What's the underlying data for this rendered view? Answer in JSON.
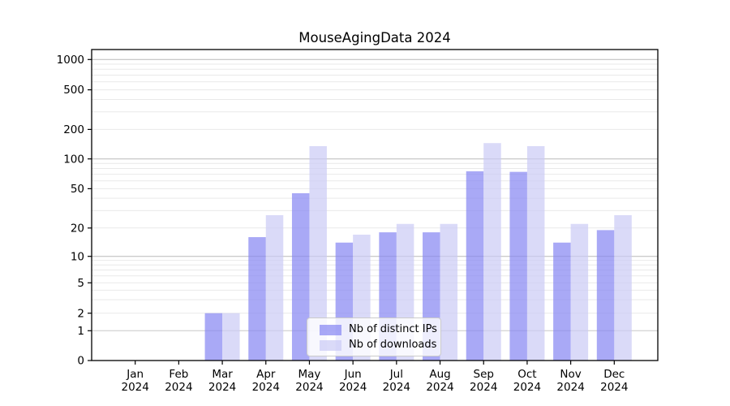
{
  "title": "MouseAgingData 2024",
  "legend": {
    "items": [
      {
        "label": "Nb of distinct IPs"
      },
      {
        "label": "Nb of downloads"
      }
    ]
  },
  "chart_data": {
    "type": "bar",
    "title": "MouseAgingData 2024",
    "categories": [
      "Jan",
      "Feb",
      "Mar",
      "Apr",
      "May",
      "Jun",
      "Jul",
      "Aug",
      "Sep",
      "Oct",
      "Nov",
      "Dec"
    ],
    "category_year": "2024",
    "series": [
      {
        "name": "Nb of distinct IPs",
        "color": "rgba(132,132,242,0.7)",
        "displayed_color": "#a9a9f6",
        "values": [
          0,
          0,
          2,
          16,
          45,
          14,
          18,
          18,
          75,
          74,
          14,
          19
        ]
      },
      {
        "name": "Nb of downloads",
        "color": "rgba(202,202,245,0.7)",
        "displayed_color": "#dadaf8",
        "values": [
          0,
          0,
          2,
          27,
          135,
          17,
          22,
          22,
          145,
          135,
          22,
          27
        ]
      }
    ],
    "yscale": "symlog",
    "yticks": [
      0,
      1,
      2,
      5,
      10,
      20,
      50,
      100,
      200,
      500,
      1000
    ],
    "ylim": [
      0,
      1264
    ],
    "xlabel": "",
    "ylabel": "",
    "grid": true,
    "legend_position": "lower center"
  },
  "colors": {
    "major_grid": "#b9b9b9",
    "one_grid": "#c8c8c8",
    "minor_grid": "#e9e9e9",
    "axis": "#000000",
    "text": "#000000",
    "background": "#ffffff"
  }
}
